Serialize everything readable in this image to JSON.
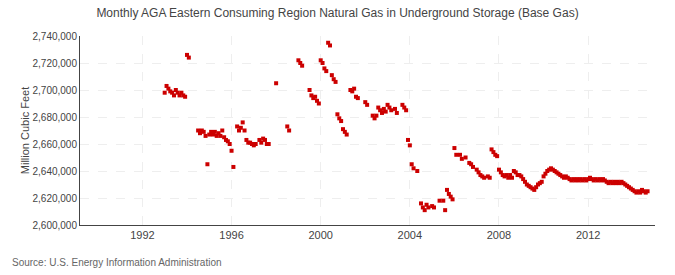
{
  "chart_data": {
    "type": "scatter",
    "title": "Monthly AGA Eastern Consuming Region Natural Gas in Underground Storage (Base Gas)",
    "y_label": "Million Cubic Feet",
    "annotations": [
      "Source: U.S. Energy Information Administration"
    ],
    "color": "#cc0000",
    "marker": "square",
    "grid": true,
    "xlim": [
      1989.2,
      2015.0
    ],
    "xticks": [
      1992,
      1996,
      2000,
      2004,
      2008,
      2012
    ],
    "ylim": [
      2600000,
      2740000
    ],
    "yticks": [
      {
        "value": 2600000,
        "label": "2,600,000"
      },
      {
        "value": 2620000,
        "label": "2,620,000"
      },
      {
        "value": 2640000,
        "label": "2,640,000"
      },
      {
        "value": 2660000,
        "label": "2,660,000"
      },
      {
        "value": 2680000,
        "label": "2,680,000"
      },
      {
        "value": 2700000,
        "label": "2,700,000"
      },
      {
        "value": 2720000,
        "label": "2,720,000"
      },
      {
        "value": 2740000,
        "label": "2,740,000"
      }
    ],
    "x": [
      1993,
      1993.0833333333333,
      1993.1666666666667,
      1993.25,
      1993.3333333333333,
      1993.4166666666667,
      1993.5,
      1993.5833333333333,
      1993.6666666666667,
      1993.75,
      1993.8333333333333,
      1993.9166666666667,
      1994,
      1994.0833333333333,
      1994.5,
      1994.5833333333333,
      1994.6666666666667,
      1994.75,
      1994.8333333333333,
      1994.9166666666667,
      1995,
      1995.0833333333333,
      1995.1666666666667,
      1995.25,
      1995.3333333333333,
      1995.4166666666667,
      1995.5,
      1995.5833333333333,
      1995.6666666666667,
      1995.75,
      1995.8333333333333,
      1995.9166666666667,
      1996,
      1996.0833333333333,
      1996.25,
      1996.3333333333333,
      1996.4166666666667,
      1996.5,
      1996.5833333333333,
      1996.6666666666667,
      1996.75,
      1996.8333333333333,
      1996.9166666666667,
      1997,
      1997.0833333333333,
      1997.25,
      1997.3333333333333,
      1997.4166666666667,
      1997.5,
      1997.5833333333333,
      1997.6666666666667,
      1998,
      1998.5,
      1998.5833333333333,
      1999,
      1999.0833333333333,
      1999.1666666666667,
      1999.5,
      1999.5833333333333,
      1999.6666666666667,
      1999.75,
      1999.8333333333333,
      1999.9166666666667,
      2000,
      2000.0833333333333,
      2000.1666666666667,
      2000.25,
      2000.3333333333333,
      2000.4166666666667,
      2000.5,
      2000.5833333333333,
      2000.6666666666667,
      2000.75,
      2000.8333333333333,
      2000.9166666666667,
      2001,
      2001.0833333333333,
      2001.1666666666667,
      2001.3333333333333,
      2001.4166666666667,
      2001.5,
      2001.5833333333333,
      2001.6666666666667,
      2002,
      2002.0833333333333,
      2002.3333333333333,
      2002.4166666666667,
      2002.5,
      2002.5833333333333,
      2002.6666666666667,
      2002.75,
      2002.8333333333333,
      2002.9166666666667,
      2003,
      2003.0833333333333,
      2003.1666666666667,
      2003.3333333333333,
      2003.4166666666667,
      2003.6666666666667,
      2003.75,
      2003.8333333333333,
      2003.9166666666667,
      2004,
      2004.0833333333333,
      2004.1666666666667,
      2004.3333333333333,
      2004.5,
      2004.5833333333333,
      2004.6666666666667,
      2004.75,
      2004.8333333333333,
      2005,
      2005.0833333333333,
      2005.3333333333333,
      2005.5,
      2005.5833333333333,
      2005.6666666666667,
      2005.75,
      2005.8333333333333,
      2005.9166666666667,
      2006,
      2006.0833333333333,
      2006.25,
      2006.3333333333333,
      2006.5,
      2006.6666666666667,
      2006.75,
      2006.8333333333333,
      2007,
      2007.0833333333333,
      2007.1666666666667,
      2007.25,
      2007.3333333333333,
      2007.5,
      2007.5833333333333,
      2007.6666666666667,
      2007.75,
      2007.8333333333333,
      2007.9166666666667,
      2008,
      2008.0833333333333,
      2008.1666666666667,
      2008.25,
      2008.3333333333333,
      2008.4166666666667,
      2008.5,
      2008.5833333333333,
      2008.6666666666667,
      2008.75,
      2008.8333333333333,
      2008.9166666666667,
      2009,
      2009.0833333333333,
      2009.1666666666667,
      2009.25,
      2009.3333333333333,
      2009.4166666666667,
      2009.5,
      2009.5833333333333,
      2009.6666666666667,
      2009.75,
      2009.8333333333333,
      2009.9166666666667,
      2010,
      2010.0833333333333,
      2010.1666666666667,
      2010.25,
      2010.3333333333333,
      2010.4166666666667,
      2010.5,
      2010.5833333333333,
      2010.6666666666667,
      2010.75,
      2010.8333333333333,
      2010.9166666666667,
      2011,
      2011.0833333333333,
      2011.1666666666667,
      2011.25,
      2011.3333333333333,
      2011.4166666666667,
      2011.5,
      2011.5833333333333,
      2011.6666666666667,
      2011.75,
      2011.8333333333333,
      2011.9166666666667,
      2012,
      2012.0833333333333,
      2012.1666666666667,
      2012.25,
      2012.3333333333333,
      2012.4166666666667,
      2012.5,
      2012.5833333333333,
      2012.6666666666667,
      2012.75,
      2012.8333333333333,
      2012.9166666666667,
      2013,
      2013.0833333333333,
      2013.1666666666667,
      2013.25,
      2013.3333333333333,
      2013.4166666666667,
      2013.5,
      2013.5833333333333,
      2013.6666666666667,
      2013.75,
      2013.8333333333333,
      2013.9166666666667,
      2014,
      2014.0833333333333,
      2014.1666666666667,
      2014.25,
      2014.3333333333333,
      2014.4166666666667,
      2014.5,
      2014.5833333333333,
      2014.6666666666667
    ],
    "values": [
      2698000,
      2703000,
      2701000,
      2699000,
      2698000,
      2696000,
      2700000,
      2698000,
      2696000,
      2698000,
      2696000,
      2695000,
      2726000,
      2724000,
      2670000,
      2668000,
      2670000,
      2669000,
      2666000,
      2645000,
      2667000,
      2669000,
      2667000,
      2669000,
      2666000,
      2668000,
      2666000,
      2670000,
      2665000,
      2663000,
      2662000,
      2660000,
      2655000,
      2643000,
      2673000,
      2670000,
      2672000,
      2676000,
      2670000,
      2663000,
      2661000,
      2661000,
      2660000,
      2659000,
      2660000,
      2663000,
      2661000,
      2664000,
      2663000,
      2660000,
      2660000,
      2705000,
      2673000,
      2670000,
      2722000,
      2720000,
      2718000,
      2700000,
      2696000,
      2694000,
      2695000,
      2692000,
      2690000,
      2722000,
      2720000,
      2716000,
      2714000,
      2735000,
      2733000,
      2711000,
      2708000,
      2706000,
      2682000,
      2679000,
      2677000,
      2671000,
      2669000,
      2667000,
      2700000,
      2699000,
      2701000,
      2695000,
      2694000,
      2691000,
      2689000,
      2681000,
      2679000,
      2681000,
      2687000,
      2685000,
      2683000,
      2686000,
      2684000,
      2689000,
      2687000,
      2685000,
      2686000,
      2683000,
      2689000,
      2687000,
      2685000,
      2663000,
      2659000,
      2645000,
      2642000,
      2640000,
      2616000,
      2613000,
      2611000,
      2615000,
      2613000,
      2614000,
      2613000,
      2618000,
      2618000,
      2611000,
      2626000,
      2623000,
      2621000,
      2619000,
      2657000,
      2652000,
      2652000,
      2649000,
      2650000,
      2646000,
      2645000,
      2643000,
      2641000,
      2639000,
      2637000,
      2636000,
      2635000,
      2636000,
      2635000,
      2656000,
      2654000,
      2652000,
      2651000,
      2641000,
      2639000,
      2637000,
      2636000,
      2637000,
      2635000,
      2637000,
      2635000,
      2640000,
      2639000,
      2637000,
      2637000,
      2636000,
      2634000,
      2632000,
      2630000,
      2629000,
      2628000,
      2627000,
      2626000,
      2628000,
      2630000,
      2631000,
      2632000,
      2636000,
      2638000,
      2640000,
      2641000,
      2642000,
      2641000,
      2640000,
      2639000,
      2638000,
      2637000,
      2636000,
      2635000,
      2636000,
      2635000,
      2634000,
      2633000,
      2634000,
      2633000,
      2634000,
      2633000,
      2634000,
      2633000,
      2634000,
      2633000,
      2634000,
      2635000,
      2634000,
      2633000,
      2634000,
      2633000,
      2634000,
      2633000,
      2634000,
      2633000,
      2632000,
      2631000,
      2632000,
      2631000,
      2632000,
      2631000,
      2632000,
      2631000,
      2632000,
      2631000,
      2630000,
      2629000,
      2628000,
      2627000,
      2626000,
      2625000,
      2624000,
      2625000,
      2624000,
      2626000,
      2625000,
      2624000,
      2625000
    ]
  }
}
